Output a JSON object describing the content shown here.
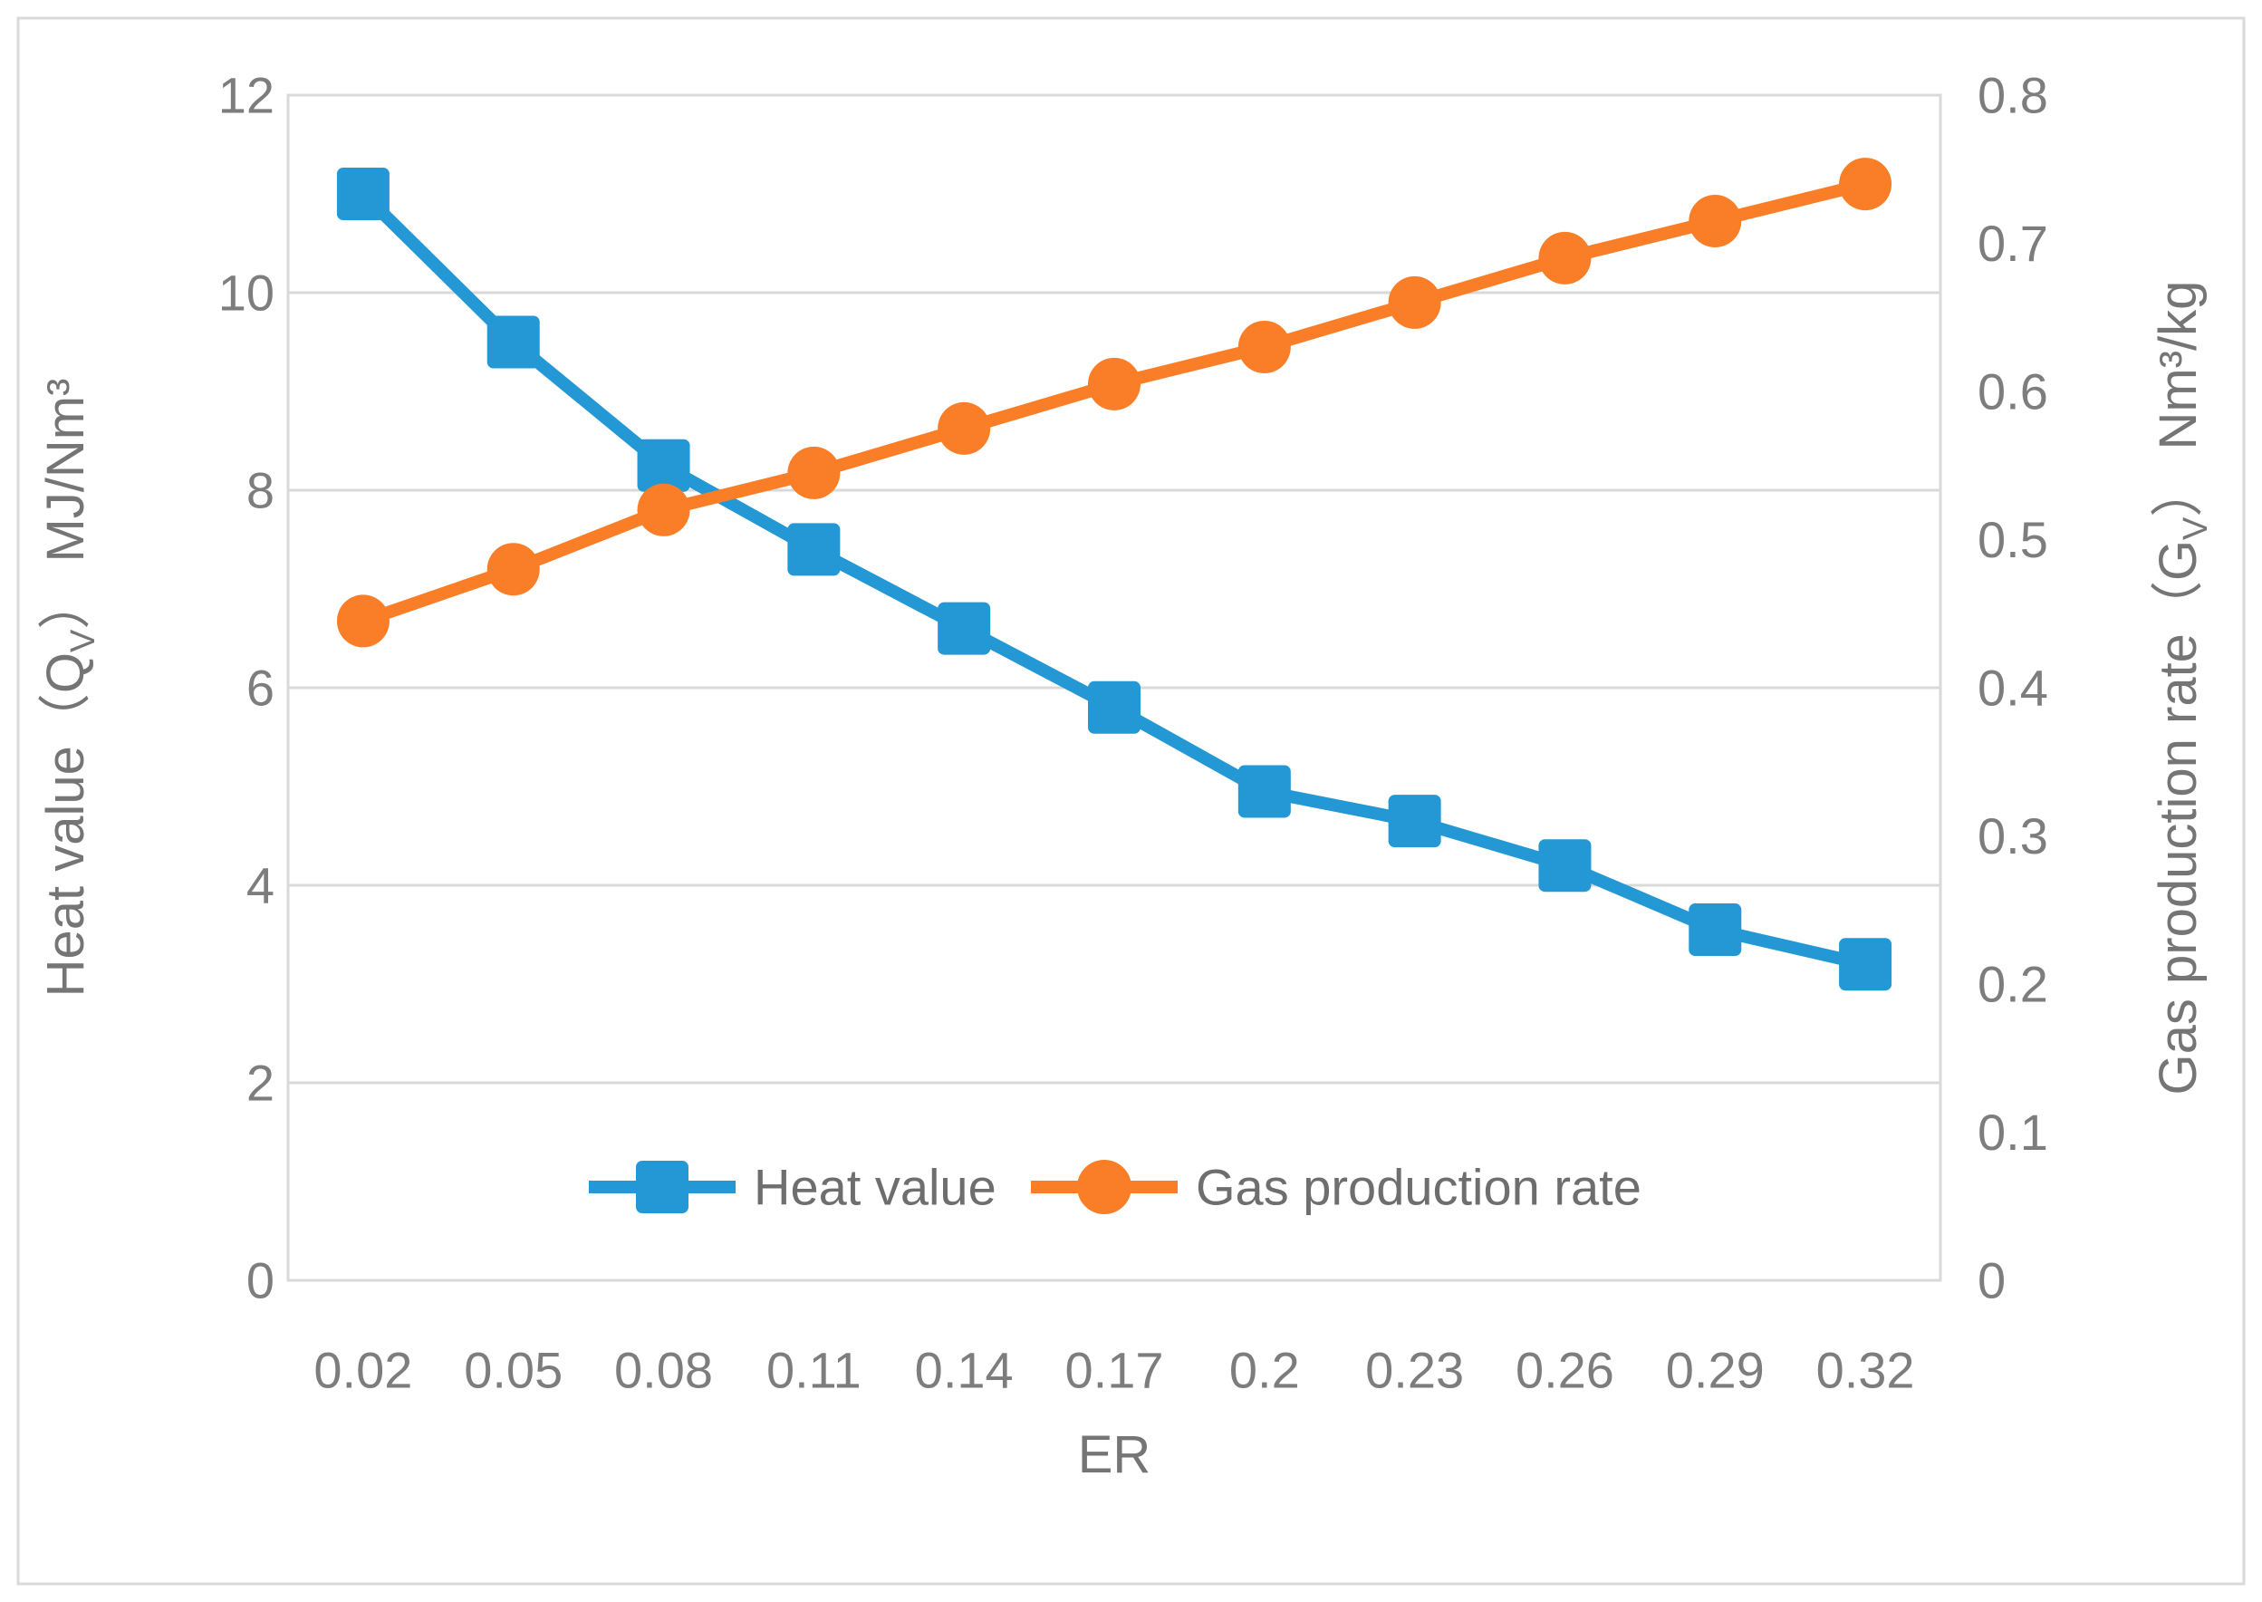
{
  "figure": {
    "background": "#ffffff",
    "border_color": "#d9d9d9",
    "gridline_color": "#d9d9d9",
    "tick_text_color": "#7d7d7d"
  },
  "chart_data": {
    "type": "line",
    "title": "",
    "xlabel": "ER",
    "x_categories": [
      "0.02",
      "0.05",
      "0.08",
      "0.11",
      "0.14",
      "0.17",
      "0.2",
      "0.23",
      "0.26",
      "0.29",
      "0.32"
    ],
    "series": [
      {
        "name": "Heat value",
        "axis": "left",
        "color": "#2498d5",
        "marker": "square",
        "values": [
          11.0,
          9.5,
          8.25,
          7.4,
          6.6,
          5.8,
          4.95,
          4.65,
          4.2,
          3.55,
          3.2
        ]
      },
      {
        "name": "Gas production rate",
        "axis": "right",
        "color": "#f97e27",
        "marker": "circle",
        "values": [
          0.445,
          0.48,
          0.52,
          0.545,
          0.575,
          0.605,
          0.63,
          0.66,
          0.69,
          0.715,
          0.74
        ]
      }
    ],
    "left_axis": {
      "title_parts": {
        "prefix": "Heat value（Q",
        "sub": "V",
        "suffix": "） MJ/Nm³"
      },
      "ticks": [
        "0",
        "2",
        "4",
        "6",
        "8",
        "10",
        "12"
      ],
      "min": 0,
      "max": 12
    },
    "right_axis": {
      "title_parts": {
        "prefix": "Gas production rate（G",
        "sub": "V",
        "suffix": "） Nm³/kg"
      },
      "ticks": [
        "0",
        "0.1",
        "0.2",
        "0.3",
        "0.4",
        "0.5",
        "0.6",
        "0.7",
        "0.8"
      ],
      "min": 0,
      "max": 0.8
    },
    "grid": true,
    "legend_position": "inside-bottom-center"
  }
}
